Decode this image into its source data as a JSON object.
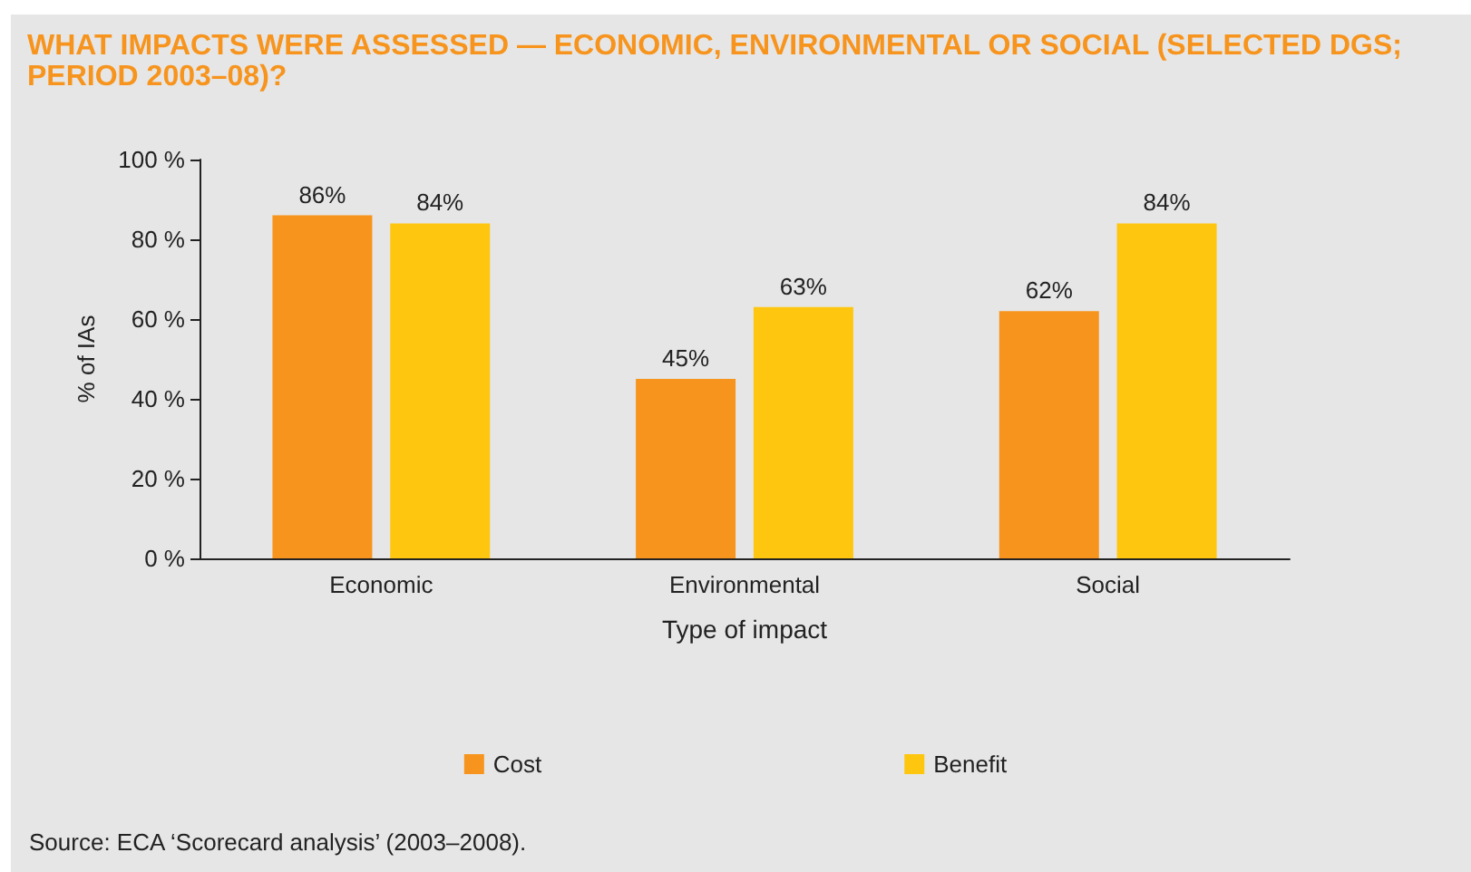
{
  "chart_data": {
    "type": "bar",
    "title": "WHAT IMPACTS WERE ASSESSED — ECONOMIC, ENVIRONMENTAL OR SOCIAL (SELECTED DGS; PERIOD 2003–08)?",
    "xlabel": "Type of impact",
    "ylabel": "% of IAs",
    "categories": [
      "Economic",
      "Environmental",
      "Social"
    ],
    "series": [
      {
        "name": "Cost",
        "color": "#f7941d",
        "values": [
          86,
          45,
          62
        ],
        "value_labels": [
          "86%",
          "45%",
          "62%"
        ]
      },
      {
        "name": "Benefit",
        "color": "#ffc60f",
        "values": [
          84,
          63,
          84
        ],
        "value_labels": [
          "84%",
          "63%",
          "84%"
        ]
      }
    ],
    "ylim": [
      0,
      100
    ],
    "yticks": [
      {
        "value": 0,
        "label": "0 %"
      },
      {
        "value": 20,
        "label": "20 %"
      },
      {
        "value": 40,
        "label": "40 %"
      },
      {
        "value": 60,
        "label": "60 %"
      },
      {
        "value": 80,
        "label": "80 %"
      },
      {
        "value": 100,
        "label": "100 %"
      }
    ],
    "grid": false,
    "legend": "bottom",
    "annotations": [
      "Source: ECA ‘Scorecard analysis’ (2003–2008)."
    ]
  }
}
